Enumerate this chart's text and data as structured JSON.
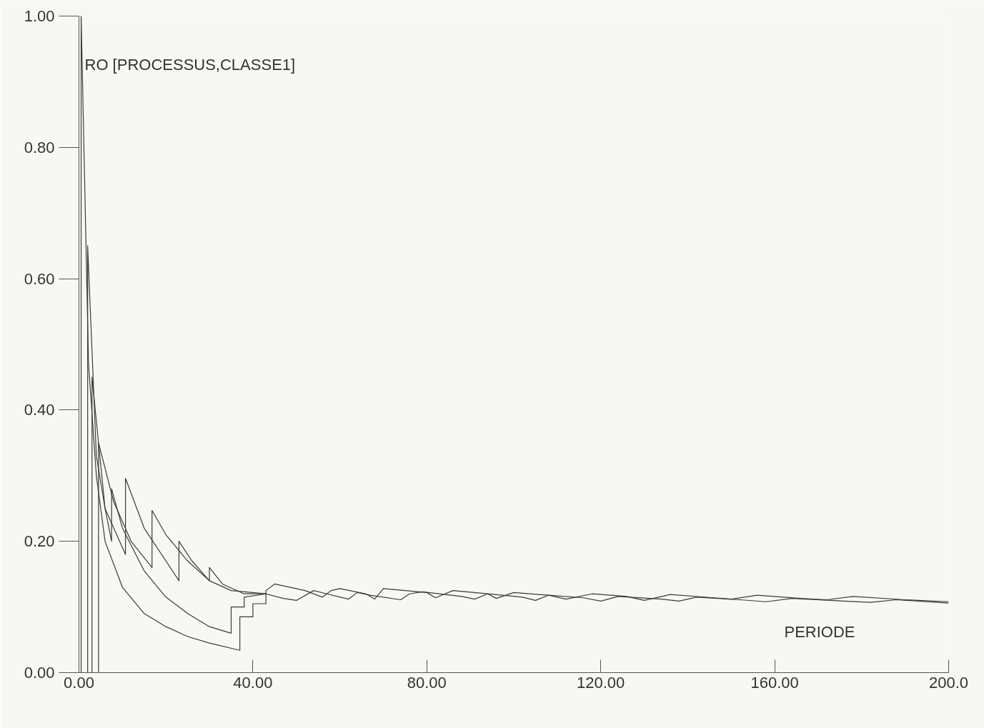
{
  "chart_data": {
    "type": "line",
    "xlabel": "PERIODE",
    "ylabel": "RO [PROCESSUS,CLASSE1]",
    "xlim": [
      0,
      200
    ],
    "ylim": [
      0,
      1.0
    ],
    "xticks": [
      {
        "value": 0,
        "label": "0.00"
      },
      {
        "value": 40,
        "label": "40.00"
      },
      {
        "value": 80,
        "label": "80.00"
      },
      {
        "value": 120,
        "label": "120.00"
      },
      {
        "value": 160,
        "label": "160.00"
      },
      {
        "value": 200,
        "label": "200.0"
      }
    ],
    "yticks": [
      {
        "value": 0,
        "label": "0.00"
      },
      {
        "value": 0.2,
        "label": "0.20"
      },
      {
        "value": 0.4,
        "label": "0.40"
      },
      {
        "value": 0.6,
        "label": "0.60"
      },
      {
        "value": 0.8,
        "label": "0.80"
      },
      {
        "value": 1.0,
        "label": "1.00"
      }
    ],
    "grid": false,
    "line_style": "solid",
    "marker": "none",
    "series": [
      {
        "color": "#3a3a3a",
        "x": [
          0.5,
          0.5,
          2.2,
          4,
          6,
          10,
          15,
          20,
          25,
          30,
          37,
          37,
          40,
          40,
          43,
          43,
          45,
          52,
          56,
          58,
          60,
          66,
          68,
          70,
          80,
          82,
          86,
          94,
          96,
          100,
          108,
          112,
          118,
          126,
          130,
          136,
          146,
          150,
          156,
          166,
          172,
          178,
          190,
          200
        ],
        "values": [
          0,
          1.0,
          0.47,
          0.3,
          0.2,
          0.13,
          0.09,
          0.07,
          0.055,
          0.045,
          0.034,
          0.085,
          0.085,
          0.105,
          0.105,
          0.125,
          0.135,
          0.125,
          0.115,
          0.125,
          0.128,
          0.12,
          0.112,
          0.128,
          0.122,
          0.114,
          0.125,
          0.12,
          0.113,
          0.122,
          0.118,
          0.112,
          0.12,
          0.116,
          0.11,
          0.119,
          0.114,
          0.112,
          0.118,
          0.113,
          0.111,
          0.116,
          0.111,
          0.108
        ]
      },
      {
        "color": "#3a3a3a",
        "x": [
          2,
          2,
          4,
          6,
          7.5,
          7.5,
          10,
          15,
          20,
          25,
          30,
          35,
          35,
          38,
          38,
          43,
          47,
          50,
          54,
          57,
          62,
          64,
          67,
          74,
          76,
          79,
          88,
          91,
          94,
          102,
          105,
          108,
          116,
          120,
          124,
          134,
          138,
          142,
          152,
          158,
          164,
          176,
          182,
          188,
          200
        ],
        "values": [
          0,
          0.65,
          0.33,
          0.25,
          0.2,
          0.28,
          0.22,
          0.155,
          0.115,
          0.09,
          0.07,
          0.06,
          0.1,
          0.1,
          0.115,
          0.12,
          0.113,
          0.11,
          0.125,
          0.12,
          0.112,
          0.122,
          0.118,
          0.111,
          0.12,
          0.123,
          0.116,
          0.112,
          0.12,
          0.115,
          0.11,
          0.118,
          0.114,
          0.109,
          0.116,
          0.112,
          0.109,
          0.115,
          0.111,
          0.108,
          0.113,
          0.109,
          0.107,
          0.111,
          0.106
        ]
      },
      {
        "color": "#3a3a3a",
        "x": [
          3,
          3,
          6,
          10.7,
          10.7,
          15,
          20,
          23,
          23,
          26,
          30,
          30,
          33,
          38,
          43
        ],
        "values": [
          0,
          0.45,
          0.25,
          0.18,
          0.296,
          0.22,
          0.17,
          0.14,
          0.2,
          0.17,
          0.14,
          0.16,
          0.135,
          0.12,
          0.12
        ]
      },
      {
        "color": "#3a3a3a",
        "x": [
          4.5,
          4.5,
          8,
          12,
          16.8,
          16.8,
          20,
          25,
          30,
          35,
          43
        ],
        "values": [
          0,
          0.35,
          0.26,
          0.2,
          0.16,
          0.247,
          0.21,
          0.17,
          0.14,
          0.125,
          0.12
        ]
      }
    ]
  }
}
